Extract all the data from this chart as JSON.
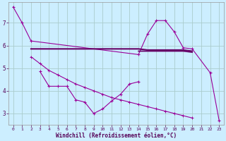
{
  "xlabel": "Windchill (Refroidissement éolien,°C)",
  "background_color": "#cceeff",
  "grid_color": "#aacccc",
  "line_color": "#990099",
  "line_color2": "#660066",
  "ylim": [
    2.5,
    7.9
  ],
  "yticks": [
    3,
    4,
    5,
    6,
    7
  ],
  "xticks": [
    0,
    1,
    2,
    3,
    4,
    5,
    6,
    7,
    8,
    9,
    10,
    11,
    12,
    13,
    14,
    15,
    16,
    17,
    18,
    19,
    20,
    21,
    22,
    23
  ],
  "curve1_x": [
    0,
    1,
    2,
    14,
    15,
    16,
    17,
    18,
    19,
    20,
    22,
    23
  ],
  "curve1_y": [
    7.7,
    7.0,
    6.2,
    5.6,
    6.5,
    7.1,
    7.1,
    6.6,
    5.9,
    5.85,
    4.8,
    2.7
  ],
  "flat1_x": [
    2,
    3,
    4,
    5,
    6,
    7,
    8,
    9,
    10,
    11,
    12,
    13,
    14,
    15,
    16,
    17,
    18,
    19,
    20
  ],
  "flat1_y": [
    5.85,
    5.85,
    5.85,
    5.85,
    5.85,
    5.85,
    5.85,
    5.85,
    5.85,
    5.85,
    5.85,
    5.85,
    5.85,
    5.8,
    5.8,
    5.8,
    5.8,
    5.8,
    5.75
  ],
  "flat2_x": [
    14,
    15,
    16,
    17,
    18,
    19,
    20
  ],
  "flat2_y": [
    5.75,
    5.75,
    5.75,
    5.75,
    5.75,
    5.75,
    5.7
  ],
  "curve2_x": [
    3,
    4,
    5,
    6,
    7,
    8,
    9,
    10,
    11,
    12,
    13,
    14
  ],
  "curve2_y": [
    4.85,
    4.2,
    4.2,
    4.2,
    3.6,
    3.5,
    3.0,
    3.2,
    3.55,
    3.85,
    4.3,
    4.4
  ],
  "curve3_x": [
    2,
    3,
    4,
    5,
    6,
    7,
    8,
    9,
    10,
    11,
    12,
    13,
    14,
    15,
    16,
    17,
    18,
    19,
    20,
    21,
    22,
    23
  ],
  "curve3_y": [
    5.5,
    5.2,
    4.9,
    4.7,
    4.5,
    4.3,
    4.15,
    4.0,
    3.85,
    3.7,
    3.6,
    3.5,
    3.4,
    3.3,
    3.2,
    3.1,
    3.0,
    2.9,
    2.8,
    null,
    null,
    null
  ]
}
